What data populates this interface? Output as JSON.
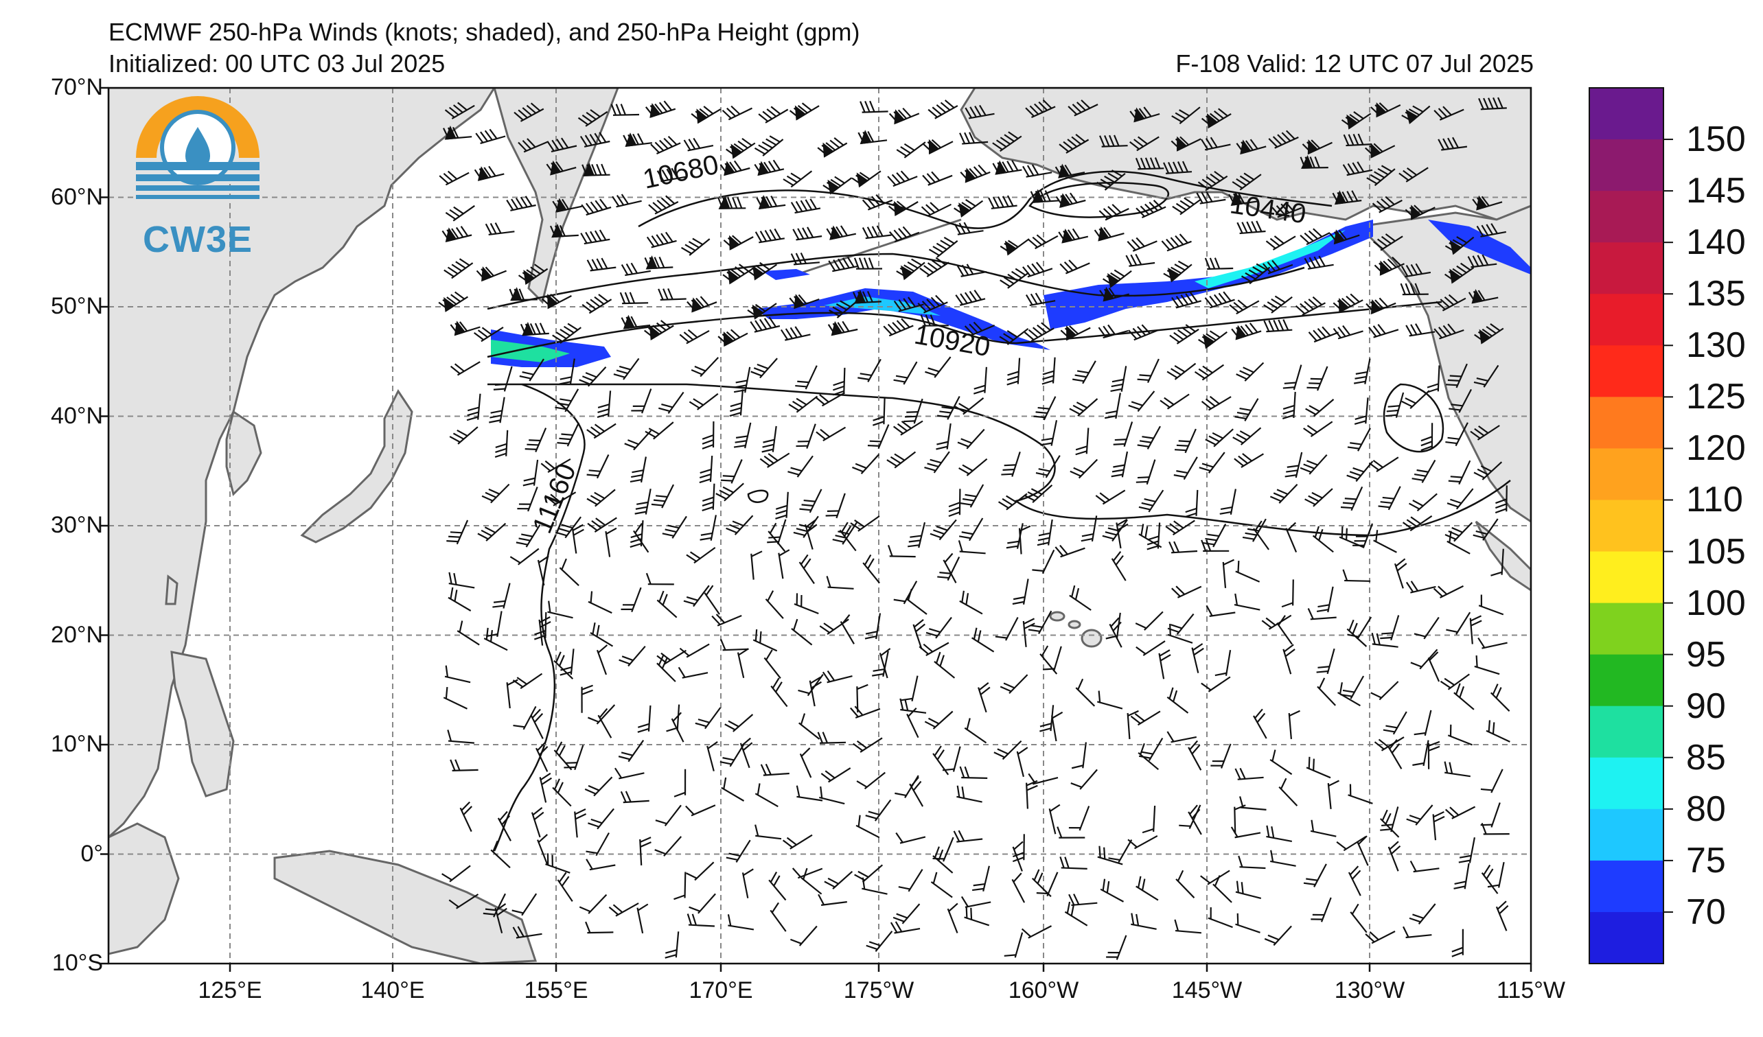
{
  "header": {
    "title": "ECMWF 250-hPa Winds (knots; shaded), and 250-hPa Height (gpm)",
    "initialized": "Initialized: 00 UTC 03 Jul 2025",
    "valid": "F-108  Valid: 12 UTC 07 Jul 2025"
  },
  "logo": {
    "text": "CW3E",
    "icon": "water-drop-sun-icon"
  },
  "axes": {
    "lat_labels": [
      "70°N",
      "60°N",
      "50°N",
      "40°N",
      "30°N",
      "20°N",
      "10°N",
      "0°",
      "10°S"
    ],
    "lon_labels": [
      "125°E",
      "140°E",
      "155°E",
      "170°E",
      "175°W",
      "160°W",
      "145°W",
      "130°W",
      "115°W"
    ]
  },
  "contour_labels": [
    "10680",
    "10440",
    "10920",
    "11160"
  ],
  "colorbar": {
    "labels": [
      "150",
      "145",
      "140",
      "135",
      "130",
      "125",
      "120",
      "110",
      "105",
      "100",
      "95",
      "90",
      "85",
      "80",
      "75",
      "70"
    ],
    "colors": [
      "#6a1a8e",
      "#8c1a6e",
      "#a81a55",
      "#c8193e",
      "#e81c2a",
      "#ff2a1a",
      "#ff7a1e",
      "#ffa21e",
      "#ffc21e",
      "#ffee1e",
      "#7fd21e",
      "#22b822",
      "#1ee0a0",
      "#1ef2f2",
      "#1ec8ff",
      "#1e3cff",
      "#1e1ee0"
    ]
  },
  "colors": {
    "land": "#e3e3e3",
    "coast": "#666666",
    "grid": "#888888",
    "jet_core": "#1ec8ff",
    "jet_edge": "#1e3cff"
  }
}
